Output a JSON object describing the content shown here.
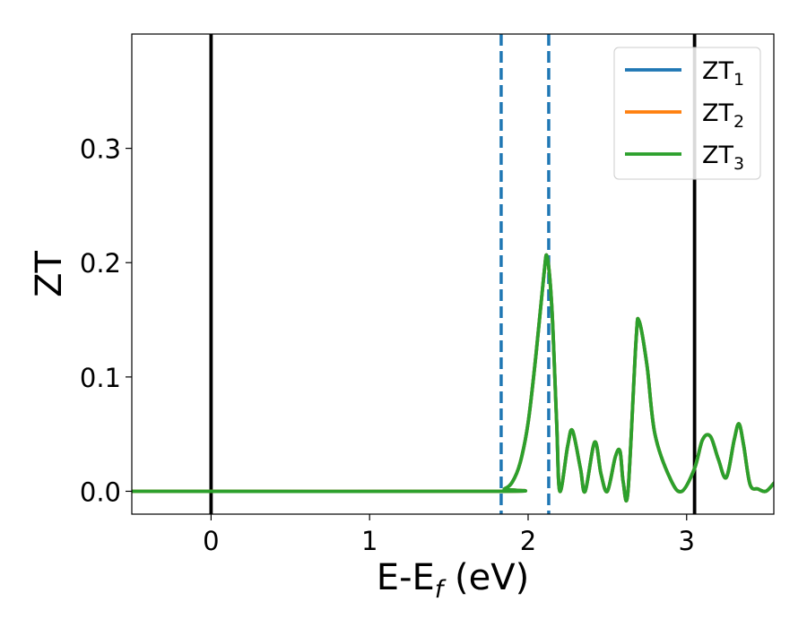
{
  "chart_data": {
    "type": "line",
    "xlabel_main": "E-E",
    "xlabel_sub": "f",
    "xlabel_unit": " (eV)",
    "ylabel": "ZT",
    "xlim": [
      -0.5,
      3.55
    ],
    "ylim": [
      -0.02,
      0.4
    ],
    "xticks": [
      0,
      1,
      2,
      3
    ],
    "xtick_labels": [
      "0",
      "1",
      "2",
      "3"
    ],
    "yticks": [
      0.0,
      0.1,
      0.2,
      0.3
    ],
    "ytick_labels": [
      "0.0",
      "0.1",
      "0.2",
      "0.3"
    ],
    "grid": false,
    "legend_position": "top-right",
    "series": [
      {
        "name_main": "ZT",
        "name_sub": "1",
        "color": "#1f77b4",
        "x": [
          -0.5,
          1.8,
          1.85,
          1.9,
          1.95,
          2.0,
          2.05,
          2.1,
          2.12,
          2.15,
          2.18,
          2.2,
          2.25,
          2.28,
          2.33,
          2.36,
          2.42,
          2.46,
          2.5,
          2.55,
          2.58,
          2.6,
          2.63,
          2.68,
          2.7,
          2.75,
          2.8,
          2.9,
          2.97,
          3.05,
          3.1,
          3.15,
          3.2,
          3.25,
          3.3,
          3.33,
          3.36,
          3.4,
          3.45,
          3.5,
          3.55
        ],
        "y": [
          0.0,
          0.0,
          0.002,
          0.008,
          0.025,
          0.06,
          0.12,
          0.19,
          0.205,
          0.16,
          0.06,
          0.0,
          0.04,
          0.053,
          0.02,
          0.0,
          0.043,
          0.015,
          0.0,
          0.03,
          0.035,
          0.008,
          0.0,
          0.13,
          0.149,
          0.11,
          0.05,
          0.01,
          0.0,
          0.02,
          0.045,
          0.048,
          0.028,
          0.012,
          0.045,
          0.059,
          0.04,
          0.006,
          0.002,
          0.0,
          0.007
        ]
      },
      {
        "name_main": "ZT",
        "name_sub": "2",
        "color": "#ff7f0e",
        "x": [
          -0.5,
          1.8,
          1.85,
          1.9,
          1.95,
          2.0,
          2.05,
          2.1,
          2.12,
          2.15,
          2.18,
          2.2,
          2.25,
          2.28,
          2.33,
          2.36,
          2.42,
          2.46,
          2.5,
          2.55,
          2.58,
          2.6,
          2.63,
          2.68,
          2.7,
          2.75,
          2.8,
          2.9,
          2.97,
          3.05,
          3.1,
          3.15,
          3.2,
          3.25,
          3.3,
          3.33,
          3.36,
          3.4,
          3.45,
          3.5,
          3.55
        ],
        "y": [
          0.0,
          0.0,
          0.002,
          0.008,
          0.025,
          0.06,
          0.12,
          0.19,
          0.205,
          0.16,
          0.06,
          0.0,
          0.04,
          0.053,
          0.02,
          0.0,
          0.043,
          0.015,
          0.0,
          0.03,
          0.035,
          0.008,
          0.0,
          0.13,
          0.149,
          0.11,
          0.05,
          0.01,
          0.0,
          0.02,
          0.045,
          0.048,
          0.028,
          0.012,
          0.045,
          0.059,
          0.04,
          0.006,
          0.002,
          0.0,
          0.007
        ]
      },
      {
        "name_main": "ZT",
        "name_sub": "3",
        "color": "#2ca02c",
        "x": [
          -0.5,
          1.8,
          1.85,
          1.9,
          1.95,
          2.0,
          2.05,
          2.1,
          2.12,
          2.15,
          2.18,
          2.2,
          2.25,
          2.28,
          2.33,
          2.36,
          2.42,
          2.46,
          2.5,
          2.55,
          2.58,
          2.6,
          2.63,
          2.68,
          2.7,
          2.75,
          2.8,
          2.9,
          2.97,
          3.05,
          3.1,
          3.15,
          3.2,
          3.25,
          3.3,
          3.33,
          3.36,
          3.4,
          3.45,
          3.5,
          3.55
        ],
        "y": [
          0.0,
          0.0,
          0.002,
          0.008,
          0.025,
          0.06,
          0.12,
          0.19,
          0.205,
          0.16,
          0.06,
          0.0,
          0.04,
          0.053,
          0.02,
          0.0,
          0.043,
          0.015,
          0.0,
          0.03,
          0.035,
          0.008,
          0.0,
          0.13,
          0.149,
          0.11,
          0.05,
          0.01,
          0.0,
          0.02,
          0.045,
          0.048,
          0.028,
          0.012,
          0.045,
          0.059,
          0.04,
          0.006,
          0.002,
          0.0,
          0.007
        ]
      }
    ],
    "vlines": [
      {
        "x": 0.0,
        "style": "solid",
        "color": "#000000"
      },
      {
        "x": 3.05,
        "style": "solid",
        "color": "#000000"
      },
      {
        "x": 1.83,
        "style": "dashed",
        "color": "#1f77b4"
      },
      {
        "x": 2.13,
        "style": "dashed",
        "color": "#1f77b4"
      }
    ]
  }
}
